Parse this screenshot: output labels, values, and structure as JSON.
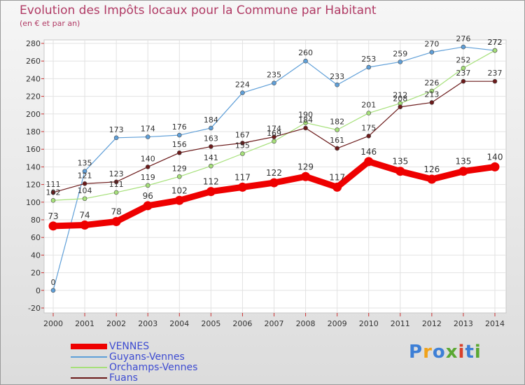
{
  "title": "Evolution des Impôts locaux pour la Commune par Habitant",
  "subtitle": "(en € et par an)",
  "brand": "Proxiti",
  "brand_colors": [
    "#3d7fd6",
    "#f0a21a",
    "#3d7fd6",
    "#5aa832",
    "#d9412b",
    "#3d7fd6",
    "#5aa832"
  ],
  "colors": {
    "VENNES": "#ee0000",
    "Guyans-Vennes": "#5f9fd8",
    "Orchamps-Vennes": "#a6e07a",
    "Fuans": "#6b1a1a"
  },
  "chart_data": {
    "type": "line",
    "title": "Evolution des Impôts locaux pour la Commune par Habitant",
    "ylabel": "(en € et par an)",
    "xlabel": "",
    "x": [
      "2000",
      "2001",
      "2002",
      "2003",
      "2004",
      "2005",
      "2006",
      "2007",
      "2008",
      "2009",
      "2010",
      "2011",
      "2012",
      "2013",
      "2014"
    ],
    "y_ticks": [
      -20,
      0,
      20,
      40,
      60,
      80,
      100,
      120,
      140,
      160,
      180,
      200,
      220,
      240,
      260,
      280
    ],
    "ylim": [
      -20,
      280
    ],
    "grid": true,
    "legend_position": "bottom-left",
    "series": [
      {
        "name": "VENNES",
        "values": [
          73,
          74,
          78,
          96,
          102,
          112,
          117,
          122,
          129,
          117,
          146,
          135,
          126,
          135,
          140
        ]
      },
      {
        "name": "Guyans-Vennes",
        "values": [
          0,
          135,
          173,
          174,
          176,
          184,
          224,
          235,
          260,
          233,
          253,
          259,
          270,
          276,
          272
        ]
      },
      {
        "name": "Orchamps-Vennes",
        "values": [
          102,
          104,
          111,
          119,
          129,
          141,
          155,
          169,
          190,
          182,
          201,
          212,
          226,
          252,
          272
        ]
      },
      {
        "name": "Fuans",
        "values": [
          111,
          121,
          123,
          140,
          156,
          163,
          167,
          174,
          184,
          161,
          175,
          208,
          213,
          237,
          237
        ]
      }
    ]
  }
}
